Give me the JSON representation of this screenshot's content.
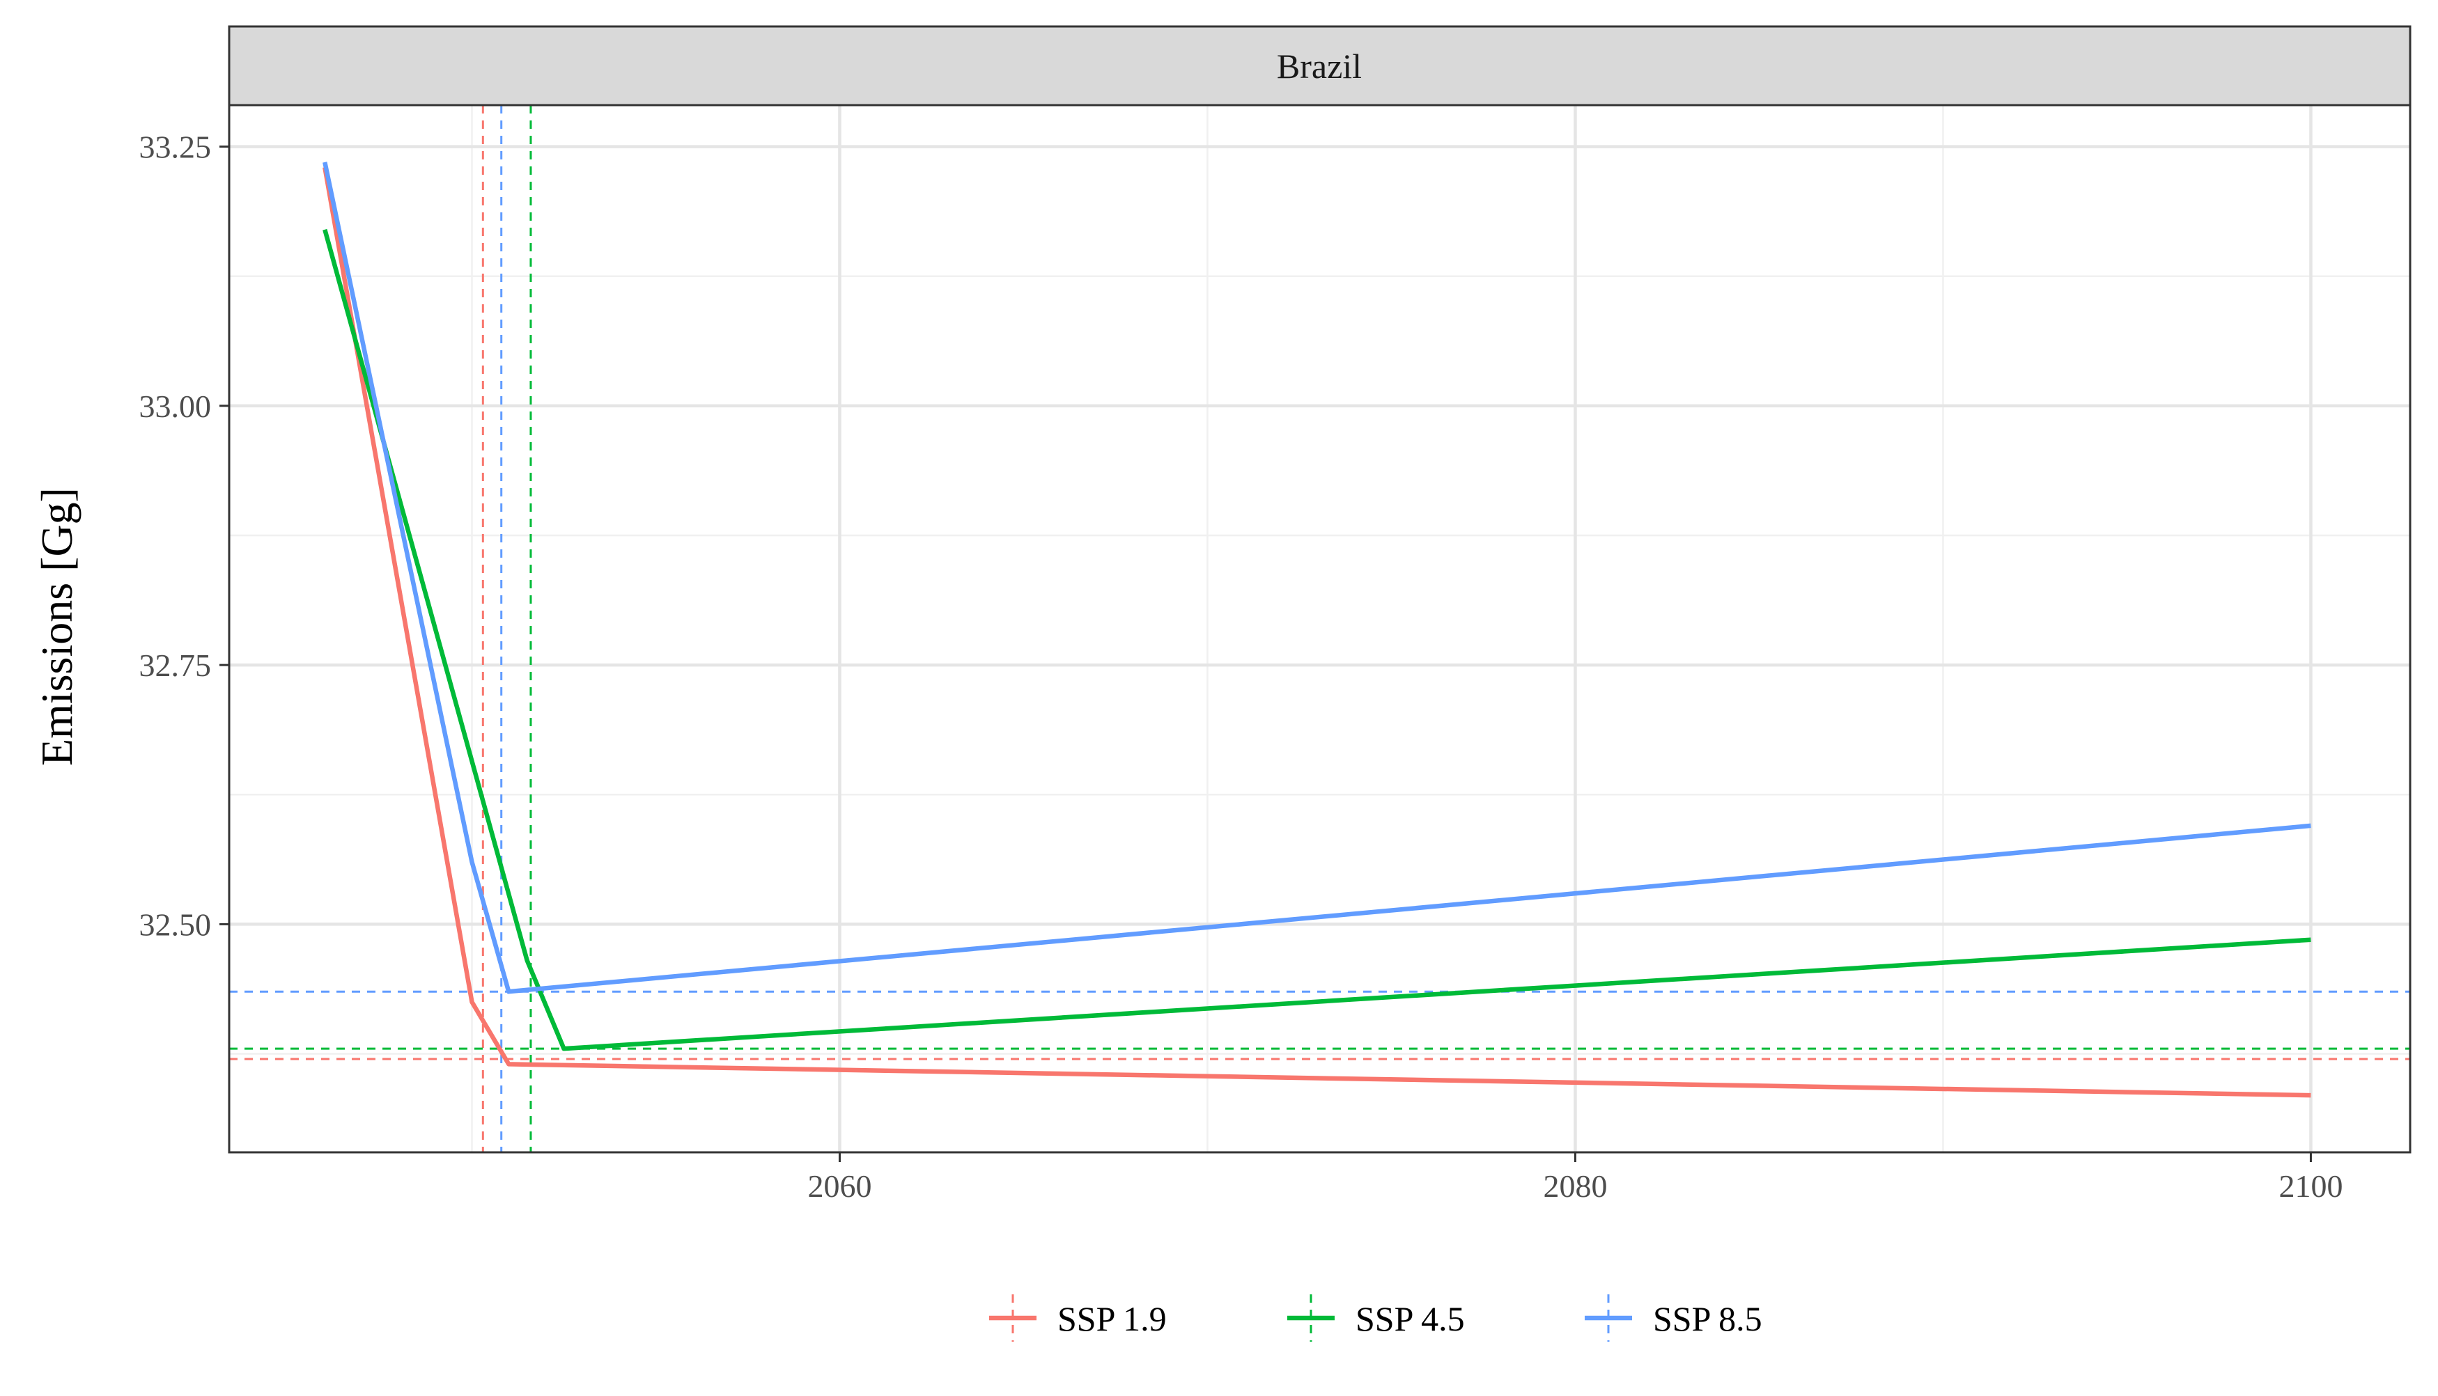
{
  "chart_data": {
    "type": "line",
    "panel": "Brazil",
    "xlabel": "",
    "ylabel": "Emissions [Gg]",
    "xlim": [
      2043.4,
      2102.7
    ],
    "ylim": [
      32.28,
      33.29
    ],
    "x_ticks": [
      2060,
      2080,
      2100
    ],
    "y_ticks": [
      32.5,
      32.75,
      33.0,
      33.25
    ],
    "x_tick_labels": [
      "2060",
      "2080",
      "2100"
    ],
    "y_tick_labels": [
      "32.50",
      "32.75",
      "33.00",
      "33.25"
    ],
    "grid": true,
    "legend_position": "bottom",
    "series": [
      {
        "name": "SSP 1.9",
        "color": "#F8766D",
        "x": [
          2046,
          2050,
          2051,
          2100
        ],
        "y": [
          33.23,
          32.425,
          32.365,
          32.335
        ],
        "vline_x": 2050.3,
        "hline_y": 32.37
      },
      {
        "name": "SSP 4.5",
        "color": "#00BA38",
        "x": [
          2046,
          2051.5,
          2052.5,
          2100
        ],
        "y": [
          33.17,
          32.465,
          32.38,
          32.485
        ],
        "vline_x": 2051.6,
        "hline_y": 32.38
      },
      {
        "name": "SSP 8.5",
        "color": "#619CFF",
        "x": [
          2046,
          2050,
          2051,
          2100
        ],
        "y": [
          33.235,
          32.56,
          32.435,
          32.595
        ],
        "vline_x": 2050.8,
        "hline_y": 32.435
      }
    ]
  }
}
